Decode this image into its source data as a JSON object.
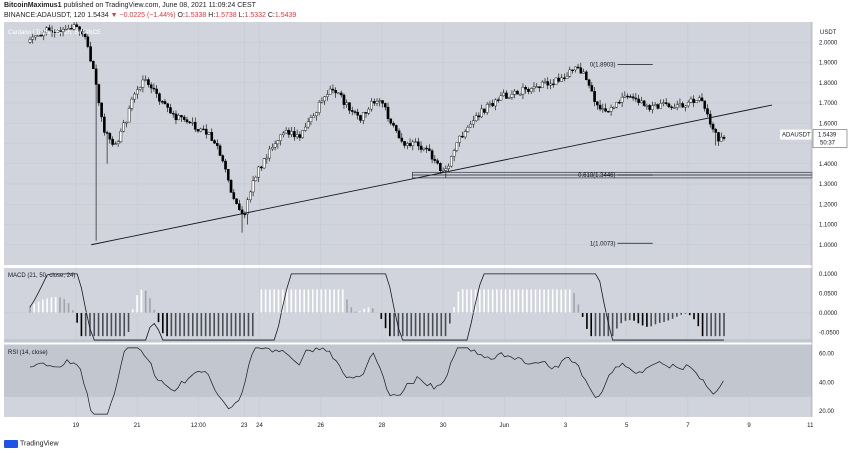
{
  "header": {
    "author": "BitcoinMaximus1",
    "published": "published on TradingView.com, June 08, 2021 11:09:24 CEST",
    "symbol": "BINANCE:ADAUSDT, 120",
    "last": "1.5434",
    "change": "▼ −0.0225 (−1.44%)",
    "open_label": "O:",
    "open": "1.5338",
    "high_label": "H:",
    "high": "1.5738",
    "low_label": "L:",
    "low": "1.5332",
    "close_label": "C:",
    "close": "1.5439"
  },
  "footer": {
    "brand": "TradingView"
  },
  "colors": {
    "up": "#ffffff",
    "down": "#000000",
    "panel": "#d1d4dc",
    "grid": "#c3c7d0",
    "pricebox": "#ffffff",
    "rsi_band": "#c2c6cf"
  },
  "chart_data": [
    {
      "type": "candlestick",
      "title": "Cardano / TetherUS, 2h, BINANCE",
      "ylabel": "USDT",
      "ylim": [
        0.9,
        2.1
      ],
      "yticks": [
        1.0,
        1.1,
        1.2,
        1.3,
        1.4,
        1.5,
        1.6,
        1.7,
        1.8,
        1.9,
        2.0
      ],
      "ytick_labels": [
        "1.0000",
        "1.1000",
        "1.2000",
        "1.3000",
        "1.4000",
        "1.5000",
        "1.6000",
        "1.7000",
        "1.8000",
        "1.9000",
        "2.0000"
      ],
      "xtick_labels": [
        "19",
        "21",
        "12:00",
        "23",
        "24",
        "26",
        "28",
        "30",
        "Jun",
        "3",
        "5",
        "7",
        "9",
        "11"
      ],
      "xtick_pos": [
        3,
        7,
        11,
        14,
        15,
        19,
        23,
        27,
        31,
        35,
        39,
        43,
        47,
        51
      ],
      "days_range": [
        0,
        54
      ],
      "last_price_label": "ADAUSDT",
      "last_price": "1.5439",
      "countdown": "50:37",
      "fib_levels": [
        {
          "label": "0(1.8903)",
          "value": 1.8903
        },
        {
          "label": "0.618(1.3446)",
          "value": 1.3446
        },
        {
          "label": "1(1.0073)",
          "value": 1.0073
        }
      ],
      "trendline": {
        "from": [
          4.0,
          1.0
        ],
        "to": [
          48.5,
          1.69
        ]
      },
      "anchors": [
        [
          0.0,
          2.0
        ],
        [
          1.0,
          2.06
        ],
        [
          2.0,
          2.05
        ],
        [
          3.0,
          2.08
        ],
        [
          3.6,
          2.03
        ],
        [
          4.3,
          1.8
        ],
        [
          4.9,
          1.55
        ],
        [
          5.5,
          1.48
        ],
        [
          6.3,
          1.62
        ],
        [
          7.0,
          1.78
        ],
        [
          7.6,
          1.82
        ],
        [
          8.5,
          1.72
        ],
        [
          9.3,
          1.64
        ],
        [
          10.3,
          1.6
        ],
        [
          11.2,
          1.57
        ],
        [
          12.0,
          1.52
        ],
        [
          12.6,
          1.42
        ],
        [
          13.3,
          1.22
        ],
        [
          14.0,
          1.14
        ],
        [
          14.6,
          1.32
        ],
        [
          15.3,
          1.42
        ],
        [
          16.0,
          1.5
        ],
        [
          16.8,
          1.56
        ],
        [
          17.6,
          1.52
        ],
        [
          18.3,
          1.62
        ],
        [
          19.0,
          1.7
        ],
        [
          19.6,
          1.76
        ],
        [
          20.3,
          1.73
        ],
        [
          21.0,
          1.66
        ],
        [
          21.6,
          1.62
        ],
        [
          22.3,
          1.69
        ],
        [
          22.9,
          1.72
        ],
        [
          23.7,
          1.58
        ],
        [
          24.5,
          1.5
        ],
        [
          25.3,
          1.5
        ],
        [
          26.1,
          1.45
        ],
        [
          26.7,
          1.38
        ],
        [
          27.2,
          1.36
        ],
        [
          27.8,
          1.48
        ],
        [
          28.5,
          1.58
        ],
        [
          29.2,
          1.63
        ],
        [
          30.0,
          1.69
        ],
        [
          30.8,
          1.73
        ],
        [
          31.6,
          1.75
        ],
        [
          32.5,
          1.77
        ],
        [
          33.3,
          1.79
        ],
        [
          34.2,
          1.8
        ],
        [
          35.0,
          1.84
        ],
        [
          35.6,
          1.87
        ],
        [
          36.3,
          1.84
        ],
        [
          36.9,
          1.7
        ],
        [
          37.6,
          1.66
        ],
        [
          38.3,
          1.7
        ],
        [
          39.1,
          1.75
        ],
        [
          39.8,
          1.7
        ],
        [
          40.5,
          1.68
        ],
        [
          41.3,
          1.69
        ],
        [
          42.0,
          1.69
        ],
        [
          42.7,
          1.68
        ],
        [
          43.4,
          1.72
        ],
        [
          44.0,
          1.7
        ],
        [
          44.5,
          1.6
        ],
        [
          45.0,
          1.52
        ],
        [
          45.5,
          1.54
        ]
      ]
    },
    {
      "type": "histogram",
      "title": "MACD (21, 50, close, 24)",
      "ylim": [
        -0.075,
        0.115
      ],
      "yticks": [
        -0.05,
        0.0,
        0.05,
        0.1
      ],
      "ytick_labels": [
        "-0.0500",
        "0.0000",
        "0.0500",
        "0.1000"
      ]
    },
    {
      "type": "line",
      "title": "RSI (14, close)",
      "ylim": [
        16,
        66
      ],
      "yticks": [
        20,
        40,
        60
      ],
      "ytick_labels": [
        "20.00",
        "40.00",
        "60.00"
      ],
      "band": [
        30,
        70
      ]
    }
  ]
}
